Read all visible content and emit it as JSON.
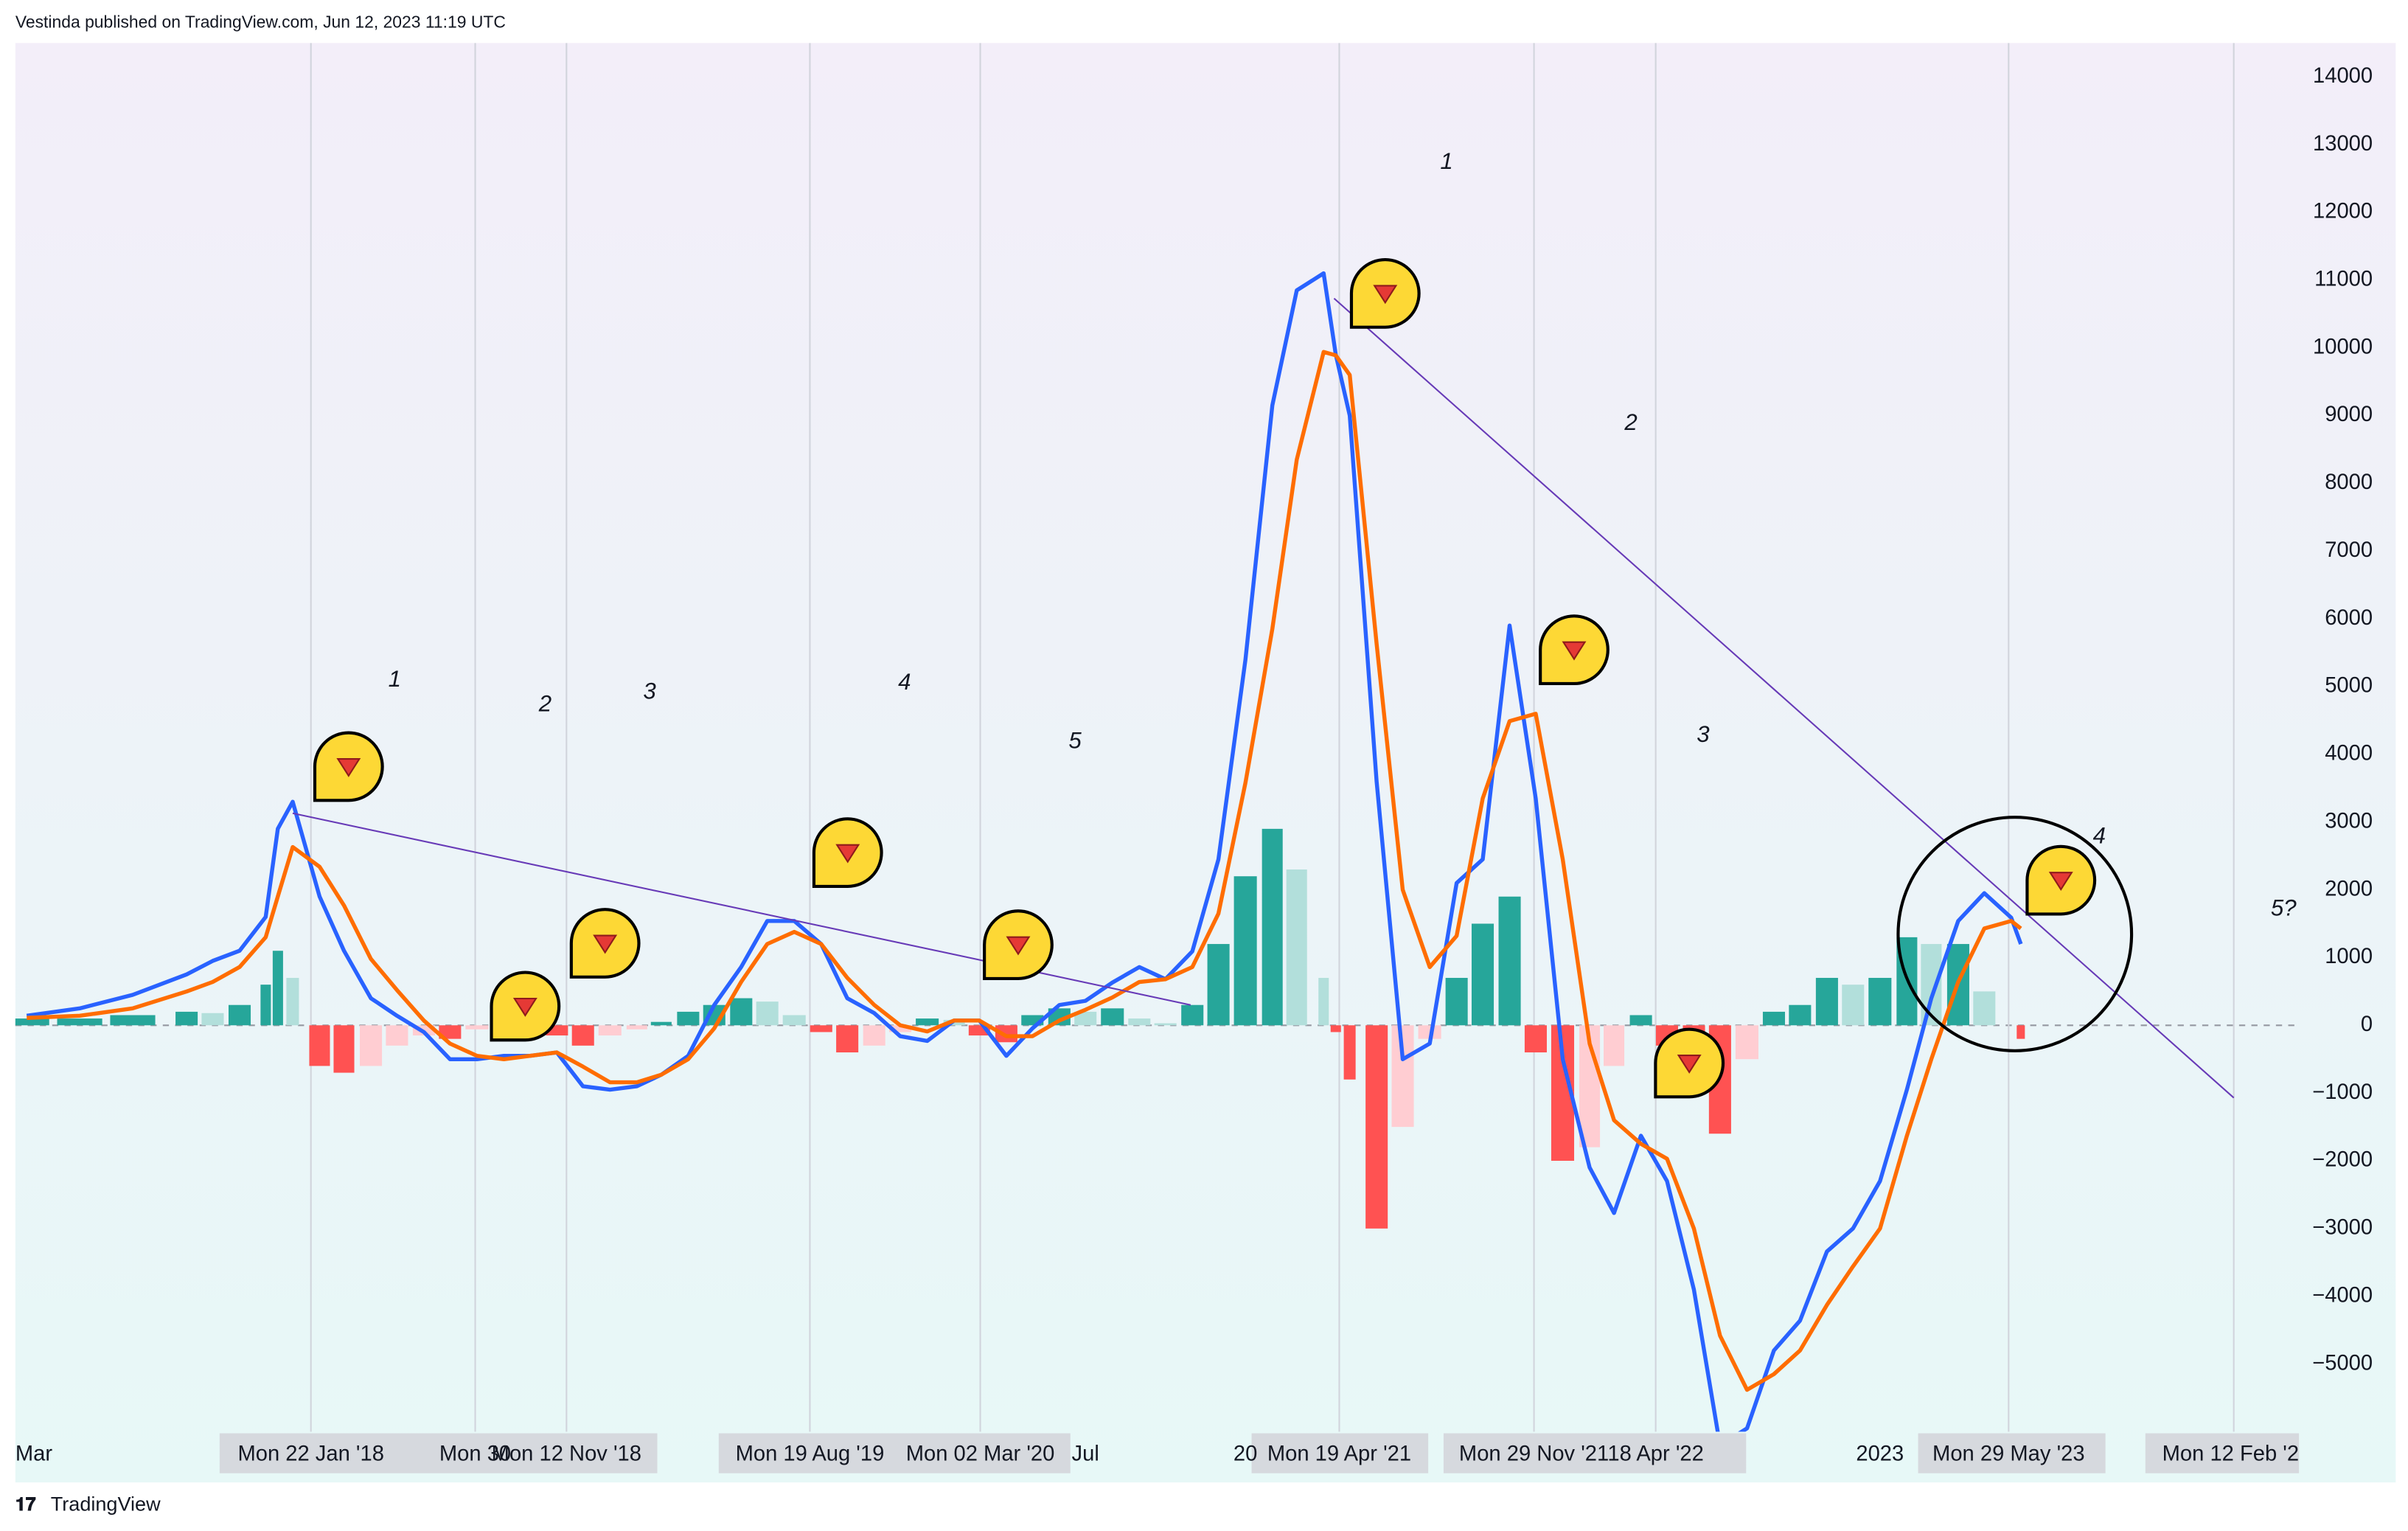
{
  "header": "Vestinda published on TradingView.com, Jun 12, 2023 11:19 UTC",
  "footer": "TradingView",
  "chart_data": {
    "type": "line",
    "x": [
      "2017-03-01",
      "2017-05-01",
      "2017-07-01",
      "2017-09-01",
      "2017-10-01",
      "2017-11-01",
      "2017-12-01",
      "2017-12-15",
      "2018-01-01",
      "2018-02-01",
      "2018-03-01",
      "2018-04-01",
      "2018-05-01",
      "2018-06-01",
      "2018-07-01",
      "2018-08-01",
      "2018-09-01",
      "2018-10-01",
      "2018-11-01",
      "2018-12-01",
      "2019-01-01",
      "2019-02-01",
      "2019-03-01",
      "2019-04-01",
      "2019-05-01",
      "2019-06-01",
      "2019-07-01",
      "2019-08-01",
      "2019-09-01",
      "2019-10-01",
      "2019-11-01",
      "2019-12-01",
      "2020-01-01",
      "2020-02-01",
      "2020-03-01",
      "2020-04-01",
      "2020-05-01",
      "2020-06-01",
      "2020-07-01",
      "2020-08-01",
      "2020-09-01",
      "2020-10-01",
      "2020-11-01",
      "2020-12-01",
      "2021-01-01",
      "2021-02-01",
      "2021-03-01",
      "2021-04-01",
      "2021-04-15",
      "2021-05-01",
      "2021-06-01",
      "2021-07-01",
      "2021-08-01",
      "2021-09-01",
      "2021-10-01",
      "2021-11-01",
      "2021-12-01",
      "2022-01-01",
      "2022-02-01",
      "2022-03-01",
      "2022-04-01",
      "2022-05-01",
      "2022-06-01",
      "2022-07-01",
      "2022-08-01",
      "2022-09-01",
      "2022-10-01",
      "2022-11-01",
      "2022-12-01",
      "2023-01-01",
      "2023-02-01",
      "2023-03-01",
      "2023-04-01",
      "2023-05-01",
      "2023-06-01",
      "2023-06-12"
    ],
    "series": [
      {
        "color": "#2962ff",
        "values": [
          140,
          250,
          450,
          750,
          950,
          1100,
          1600,
          2900,
          3300,
          1900,
          1100,
          400,
          140,
          -100,
          -500,
          -500,
          -450,
          -450,
          -400,
          -900,
          -950,
          -900,
          -730,
          -450,
          300,
          860,
          1540,
          1540,
          1200,
          400,
          180,
          -160,
          -230,
          70,
          70,
          -450,
          -45,
          300,
          360,
          630,
          860,
          680,
          1090,
          2450,
          5400,
          9150,
          10850,
          11100,
          9900,
          9000,
          3600,
          -500,
          -270,
          2100,
          2450,
          5900,
          3350,
          -500,
          -2100,
          -2770,
          -1630,
          -2300,
          -3900,
          -6200,
          -5950,
          -4800,
          -4360,
          -3340,
          -3000,
          -2300,
          -950,
          400,
          1540,
          1950,
          1590,
          1200
        ]
      },
      {
        "color": "#ff6d00",
        "values": [
          110,
          140,
          250,
          500,
          640,
          860,
          1300,
          1900,
          2630,
          2340,
          1770,
          980,
          520,
          70,
          -270,
          -450,
          -500,
          -450,
          -400,
          -610,
          -840,
          -840,
          -730,
          -500,
          -45,
          640,
          1200,
          1380,
          1200,
          700,
          300,
          0,
          -90,
          70,
          70,
          -160,
          -160,
          70,
          230,
          410,
          640,
          680,
          860,
          1650,
          3580,
          5850,
          8350,
          9940,
          9890,
          9600,
          5630,
          2000,
          860,
          1320,
          3350,
          4490,
          4600,
          2450,
          -270,
          -1400,
          -1750,
          -1970,
          -3000,
          -4580,
          -5380,
          -5150,
          -4800,
          -4130,
          -3560,
          -3000,
          -1630,
          -500,
          640,
          1430,
          1540,
          1430
        ]
      }
    ],
    "histogram": {
      "values": [
        100,
        100,
        150,
        200,
        180,
        300,
        600,
        1100,
        700,
        -600,
        -700,
        -600,
        -300,
        -150,
        -200,
        -60,
        30,
        0,
        -150,
        -300,
        -150,
        -60,
        50,
        200,
        300,
        400,
        350,
        150,
        -100,
        -400,
        -300,
        -100,
        100,
        80,
        -150,
        -250,
        150,
        250,
        200,
        250,
        100,
        30,
        300,
        1200,
        2200,
        2900,
        2300,
        700,
        -100,
        -800,
        -3000,
        -1500,
        -200,
        700,
        1500,
        1900,
        -400,
        -2000,
        -1800,
        -600,
        150,
        -300,
        -1000,
        -1600,
        -500,
        200,
        300,
        700,
        600,
        700,
        1300,
        1200,
        1200,
        500,
        0,
        -200
      ],
      "colors": {
        "rise_up": "#26a69a",
        "fall_up": "#b2dfdb",
        "fall_down": "#ff5252",
        "rise_down": "#ffcdd2"
      }
    },
    "trendlines": [
      {
        "x": [
          "2018-01-01",
          "2020-10-30"
        ],
        "y": [
          3130,
          300
        ]
      },
      {
        "x": [
          "2021-04-13",
          "2024-02-12"
        ],
        "y": [
          10730,
          -1070
        ]
      }
    ],
    "trendline_color": "#673ab7",
    "annotations": [
      "1",
      "2",
      "3",
      "4",
      "5",
      "1",
      "2",
      "3",
      "4",
      "5?"
    ],
    "xlim": [
      "2017-02-16",
      "2024-04-27"
    ],
    "ylim": [
      -6000,
      14500
    ],
    "xticks": [
      {
        "value": "2017-03-01",
        "label": "Mar",
        "grid": false
      },
      {
        "value": "2018-01-22",
        "label": "Mon 22 Jan '18"
      },
      {
        "value": "2018-07-30",
        "label": "Mon 30"
      },
      {
        "value": "2018-11-12",
        "label": "Mon 12 Nov '18"
      },
      {
        "value": "2019-08-19",
        "label": "Mon 19 Aug '19"
      },
      {
        "value": "2020-03-02",
        "label": "Mon 02 Mar '20"
      },
      {
        "value": "2020-07-01",
        "label": "Jul",
        "grid": false
      },
      {
        "value": "2021-01-01",
        "label": "20",
        "grid": false
      },
      {
        "value": "2021-04-19",
        "label": "Mon 19 Apr '21"
      },
      {
        "value": "2021-11-29",
        "label": "Mon 29 Nov '21"
      },
      {
        "value": "2022-04-18",
        "label": "18 Apr '22"
      },
      {
        "value": "2023-01-01",
        "label": "2023",
        "grid": false
      },
      {
        "value": "2023-05-29",
        "label": "Mon 29 May '23"
      },
      {
        "value": "2024-02-12",
        "label": "Mon 12 Feb '2"
      }
    ],
    "yticks": [
      14000,
      13000,
      12000,
      11000,
      10000,
      9000,
      8000,
      7000,
      6000,
      5000,
      4000,
      3000,
      2000,
      1000,
      0,
      {
        "value": -1000,
        "label": "−1000"
      },
      {
        "value": -2000,
        "label": "−2000"
      },
      {
        "value": -3000,
        "label": "−3000"
      },
      {
        "value": -4000,
        "label": "−4000"
      },
      {
        "value": -5000,
        "label": "−5000"
      }
    ],
    "grid": true
  }
}
